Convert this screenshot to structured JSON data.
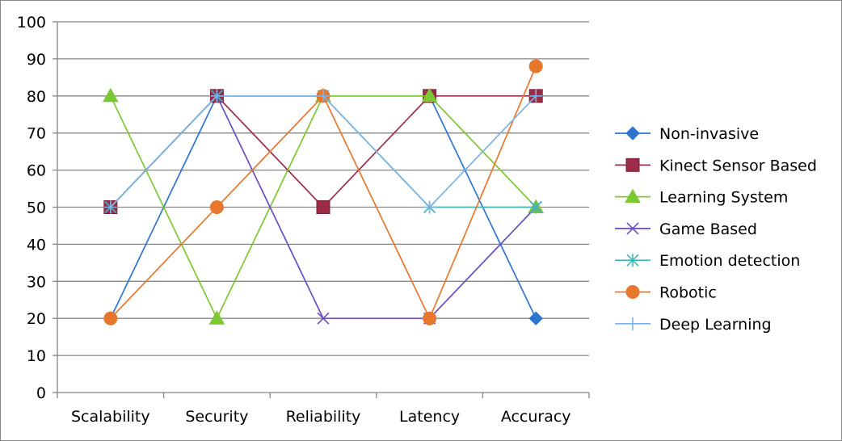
{
  "chart_data": {
    "type": "line",
    "categories": [
      "Scalability",
      "Security",
      "Reliability",
      "Latency",
      "Accuracy"
    ],
    "ylim": [
      0,
      100
    ],
    "yticks": [
      0,
      10,
      20,
      30,
      40,
      50,
      60,
      70,
      80,
      90,
      100
    ],
    "grid": true,
    "legend_position": "right",
    "series": [
      {
        "name": "Non-invasive",
        "values": [
          20,
          80,
          80,
          80,
          20
        ],
        "color": "#2E75D0",
        "marker": "diamond"
      },
      {
        "name": "Kinect Sensor Based",
        "values": [
          50,
          80,
          50,
          80,
          80
        ],
        "color": "#9B2D4A",
        "marker": "square"
      },
      {
        "name": "Learning System",
        "values": [
          80,
          20,
          80,
          80,
          50
        ],
        "color": "#7CC832",
        "marker": "triangle"
      },
      {
        "name": "Game Based",
        "values": [
          50,
          80,
          20,
          20,
          50
        ],
        "color": "#6A4CC0",
        "marker": "x"
      },
      {
        "name": "Emotion detection",
        "values": [
          50,
          80,
          80,
          50,
          50
        ],
        "color": "#3DB9B8",
        "marker": "star"
      },
      {
        "name": "Robotic",
        "values": [
          20,
          50,
          80,
          20,
          88
        ],
        "color": "#E8772E",
        "marker": "circle"
      },
      {
        "name": "Deep Learning",
        "values": [
          50,
          80,
          80,
          50,
          80
        ],
        "color": "#7FB2E4",
        "marker": "plus"
      }
    ]
  }
}
